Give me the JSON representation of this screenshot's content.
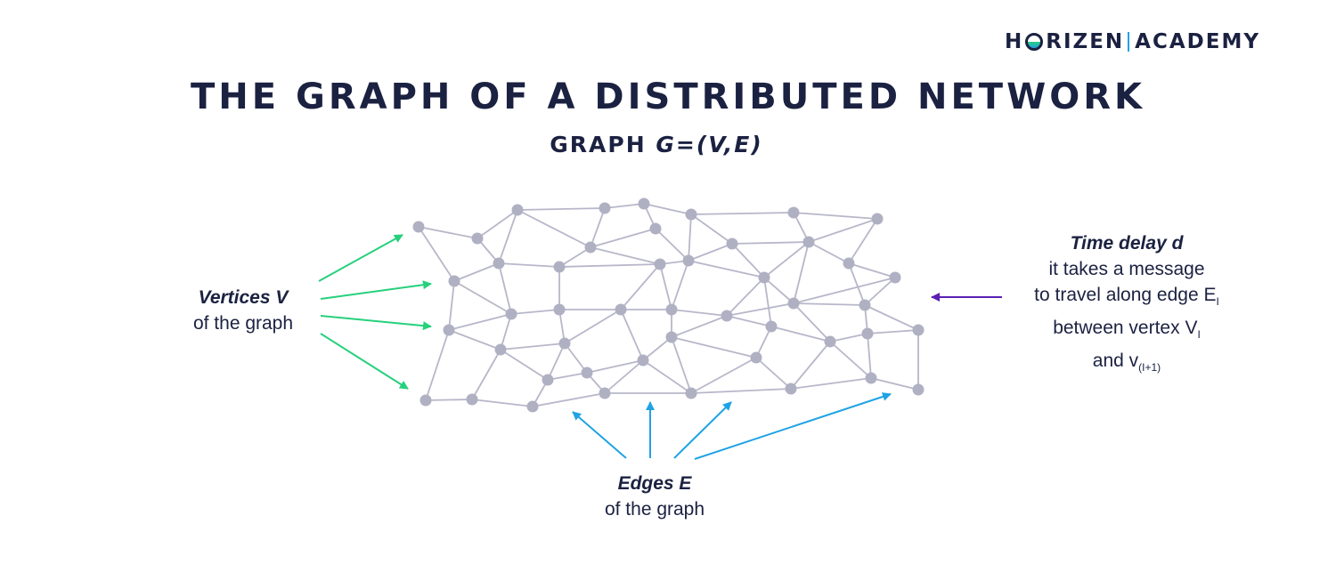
{
  "brand": {
    "part1": "H",
    "part2": "RIZEN",
    "part3": "ACADEMY",
    "colors": {
      "navy": "#1b2141",
      "green": "#26d07c",
      "blue": "#1fa3e4"
    }
  },
  "title": "THE GRAPH OF A DISTRIBUTED NETWORK",
  "subtitle": {
    "prefix": "GRAPH ",
    "formula": "G=(V,E)"
  },
  "vertices_label": {
    "head": "Vertices V",
    "body": "of the graph"
  },
  "edges_label": {
    "head": "Edges E",
    "body": "of the graph"
  },
  "delay_label": {
    "head": "Time delay d",
    "line1": "it takes a message",
    "line2a": "to travel along edge E",
    "line2sub": "I",
    "line3a": "between vertex V",
    "line3sub": "I",
    "line4a": "and v",
    "line4sub": "(I+1)"
  },
  "colors": {
    "node": "#b0b0c3",
    "edge": "#b7b7ca",
    "vertex_arrows": "#26d07c",
    "edge_arrows": "#1fa3e4",
    "delay_arrow": "#5b1fb4"
  }
}
